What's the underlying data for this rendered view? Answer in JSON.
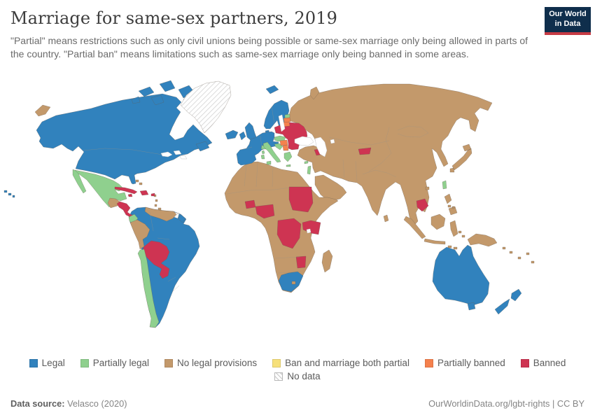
{
  "header": {
    "title": "Marriage for same-sex partners, 2019",
    "subtitle": "\"Partial\" means restrictions such as only civil unions being possible or same-sex marriage only being allowed in parts of the country. \"Partial ban\" means limitations such as same-sex marriage only being banned in some areas.",
    "logo": {
      "line1": "Our World",
      "line2": "in Data",
      "bg_color": "#0F2E4C",
      "bar_color": "#C63B44"
    }
  },
  "colors": {
    "legal": "#3182BD",
    "partially_legal": "#8FD08E",
    "no_legal_provisions": "#C3996B",
    "ban_and_marriage_both_partial": "#F6E07A",
    "partially_banned": "#F5814D",
    "banned": "#CE3452",
    "no_data_hatch_line": "#D2D2D2",
    "map_border": "#8E8577"
  },
  "legend": {
    "items": [
      {
        "key": "legal",
        "label": "Legal"
      },
      {
        "key": "partially_legal",
        "label": "Partially legal"
      },
      {
        "key": "no_legal_provisions",
        "label": "No legal provisions"
      },
      {
        "key": "ban_and_marriage_both_partial",
        "label": "Ban and marriage both partial"
      },
      {
        "key": "partially_banned",
        "label": "Partially banned"
      },
      {
        "key": "banned",
        "label": "Banned"
      }
    ],
    "no_data_item": {
      "key": "no_data",
      "label": "No data"
    }
  },
  "footer": {
    "source_label": "Data source:",
    "source_value": " Velasco (2020)",
    "link": "OurWorldinData.org/lgbt-rights",
    "separator": " | ",
    "license": "CC BY"
  },
  "chart_data": {
    "type": "heatmap",
    "subtype": "world_choropleth_map",
    "title": "Marriage for same-sex partners, 2019",
    "year": 2019,
    "categories": [
      "Legal",
      "Partially legal",
      "No legal provisions",
      "Ban and marriage both partial",
      "Partially banned",
      "Banned",
      "No data"
    ],
    "legend_position": "bottom",
    "regions": {
      "legal": [
        "Canada",
        "United States",
        "Colombia",
        "Brazil",
        "Argentina",
        "Uruguay",
        "French Guiana (France)",
        "Iceland",
        "Norway",
        "Sweden",
        "Finland",
        "Denmark",
        "United Kingdom",
        "Ireland",
        "France",
        "Spain",
        "Portugal",
        "Belgium",
        "Netherlands",
        "Germany",
        "Austria",
        "South Africa",
        "Australia",
        "New Zealand"
      ],
      "partially_legal": [
        "Mexico",
        "Ecuador",
        "Chile",
        "Italy",
        "Switzerland",
        "Czechia",
        "Slovakia",
        "Slovenia",
        "Croatia",
        "Greece",
        "Estonia",
        "Taiwan",
        "Israel",
        "Cyprus"
      ],
      "no_legal_provisions": [
        "Russia",
        "China",
        "India",
        "Japan",
        "Indonesia",
        "Turkey",
        "Iran",
        "Saudi Arabia",
        "Egypt",
        "most of Africa",
        "Central Asia",
        "Guatemala",
        "Venezuela",
        "Guyana",
        "Peru",
        "Papua New Guinea",
        "Madagascar",
        "Mongolia",
        "Philippines"
      ],
      "ban_and_marriage_both_partial": [],
      "partially_banned": [
        "Latvia",
        "Lithuania",
        "Hungary",
        "Serbia"
      ],
      "banned": [
        "Honduras",
        "Nicaragua",
        "Costa Rica",
        "Panama",
        "Cuba",
        "Dominican Republic",
        "Jamaica",
        "Bolivia",
        "Paraguay",
        "Poland",
        "Belarus",
        "Ukraine",
        "Moldova",
        "Romania",
        "Bulgaria",
        "Georgia",
        "Armenia",
        "Kyrgyzstan",
        "Burkina Faso",
        "Nigeria",
        "Sudan",
        "Democratic Republic of Congo",
        "Uganda",
        "Kenya",
        "Zimbabwe",
        "Cambodia"
      ],
      "no_data": [
        "Greenland",
        "Suriname"
      ]
    }
  }
}
